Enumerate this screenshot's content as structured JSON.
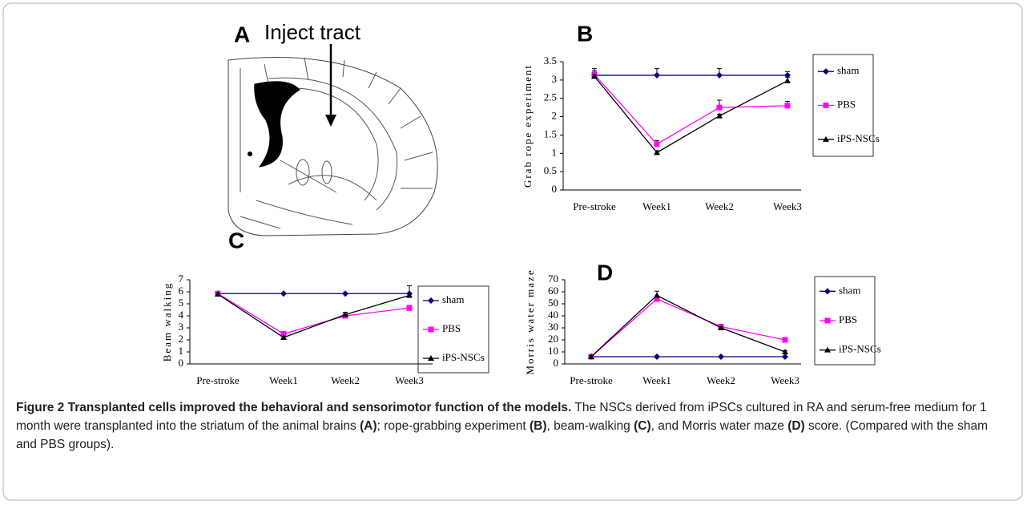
{
  "panel_a": {
    "label": "A",
    "annotation": "Inject tract"
  },
  "chart_data": [
    {
      "type": "line",
      "panel": "B",
      "ylabel": "Grab rope experiment",
      "categories": [
        "Pre-stroke",
        "Week1",
        "Week2",
        "Week3"
      ],
      "ylim": [
        0,
        3.5
      ],
      "yticks": [
        0,
        0.5,
        1,
        1.5,
        2,
        2.5,
        3,
        3.5
      ],
      "series": [
        {
          "name": "sham",
          "color": "#000080",
          "marker": "diamond",
          "values": [
            3.13,
            3.13,
            3.13,
            3.13
          ],
          "errors": [
            0.18,
            0.18,
            0.18,
            0.1
          ]
        },
        {
          "name": "PBS",
          "color": "#ff00ff",
          "marker": "square",
          "values": [
            3.15,
            1.25,
            2.25,
            2.3
          ],
          "errors": [
            0.1,
            0.1,
            0.2,
            0.12
          ]
        },
        {
          "name": "iPS-NSCs",
          "color": "#000000",
          "marker": "triangle",
          "values": [
            3.1,
            1.02,
            2.02,
            2.98
          ],
          "errors": [
            0.05,
            0.05,
            0.05,
            0.1
          ]
        }
      ]
    },
    {
      "type": "line",
      "panel": "C",
      "ylabel": "Beam walking",
      "categories": [
        "Pre-stroke",
        "Week1",
        "Week2",
        "Week3"
      ],
      "ylim": [
        0,
        7
      ],
      "yticks": [
        0,
        1,
        2,
        3,
        4,
        5,
        6,
        7
      ],
      "series": [
        {
          "name": "sham",
          "color": "#000080",
          "marker": "diamond",
          "values": [
            5.85,
            5.85,
            5.85,
            5.85
          ],
          "errors": [
            0.15,
            0.05,
            0.05,
            0.65
          ]
        },
        {
          "name": "PBS",
          "color": "#ff00ff",
          "marker": "square",
          "values": [
            5.85,
            2.5,
            4.0,
            4.65
          ],
          "errors": [
            0.15,
            0.2,
            0.2,
            0.2
          ]
        },
        {
          "name": "iPS-NSCs",
          "color": "#000000",
          "marker": "triangle",
          "values": [
            5.8,
            2.2,
            4.1,
            5.7
          ],
          "errors": [
            0.1,
            0.1,
            0.2,
            0.1
          ]
        }
      ]
    },
    {
      "type": "line",
      "panel": "D",
      "ylabel": "Morris water maze",
      "categories": [
        "Pre-stroke",
        "Week1",
        "Week2",
        "Week3"
      ],
      "ylim": [
        0,
        70
      ],
      "yticks": [
        0,
        10,
        20,
        30,
        40,
        50,
        60,
        70
      ],
      "series": [
        {
          "name": "sham",
          "color": "#000080",
          "marker": "diamond",
          "values": [
            6,
            6,
            6,
            6
          ],
          "errors": [
            0.5,
            0.5,
            0.5,
            0.5
          ]
        },
        {
          "name": "PBS",
          "color": "#ff00ff",
          "marker": "square",
          "values": [
            6,
            54,
            31,
            20
          ],
          "errors": [
            1,
            1.5,
            1,
            1
          ]
        },
        {
          "name": "iPS-NSCs",
          "color": "#000000",
          "marker": "triangle",
          "values": [
            6,
            57,
            30,
            10
          ],
          "errors": [
            1,
            3.5,
            1,
            1
          ]
        }
      ]
    }
  ],
  "caption": {
    "title": "Figure 2 Transplanted cells improved the behavioral and sensorimotor function of the models.",
    "body": [
      " The NSCs derived from iPSCs cultured in RA and serum-free medium for 1 month were transplanted into the striatum of the animal brains ",
      "(A)",
      "; rope-grabbing experiment ",
      "(B)",
      ", beam-walking ",
      "(C)",
      ", and Morris water maze ",
      "(D)",
      " score. (Compared with the sham and PBS groups)."
    ]
  }
}
